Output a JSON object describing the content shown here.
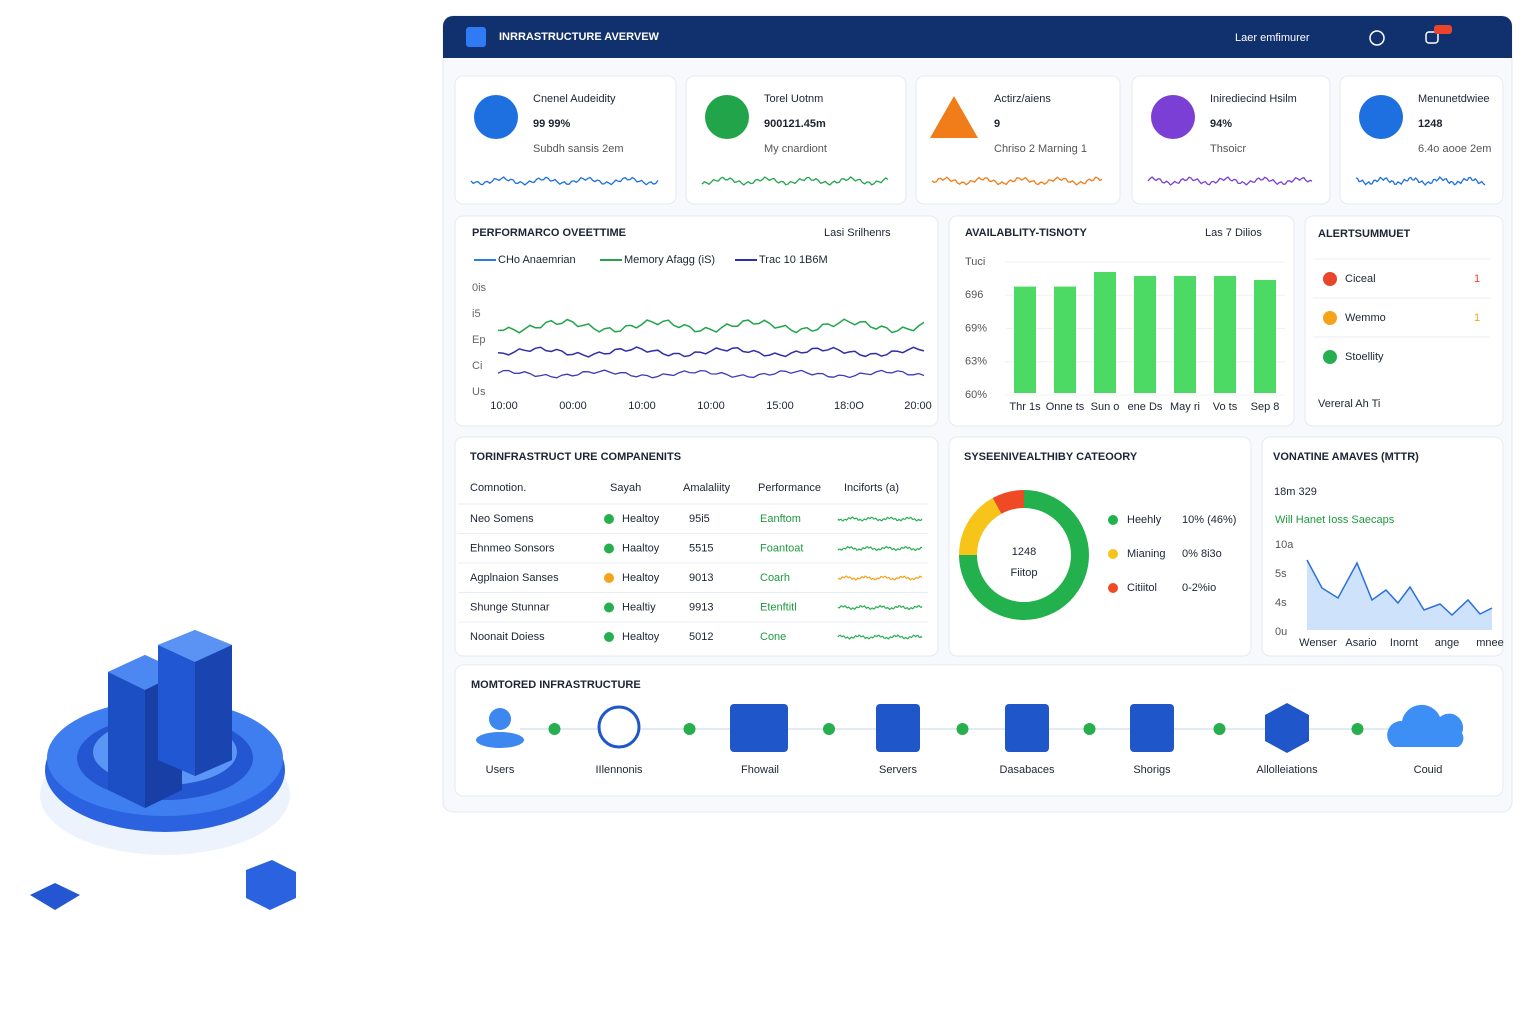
{
  "header": {
    "title": "INRRASTRUCTURE AVERVEW",
    "user": "Laer emfimurer"
  },
  "kpis": [
    {
      "label": "Cnenel Audeidity",
      "value": "99 99%",
      "sub": "Subdh sansis 2em",
      "color": "#1e6fe0"
    },
    {
      "label": "Torel Uotnm",
      "value": "900121.45m",
      "sub": "My cnardiont",
      "color": "#22a54a"
    },
    {
      "label": "Actirz/aiens",
      "value": "9",
      "sub": "Chriso 2   Marning 1",
      "color": "#f07d1a"
    },
    {
      "label": "Inirediecind Hsilm",
      "value": "94%",
      "sub": "Thsoicr",
      "color": "#7b3fd6"
    },
    {
      "label": "Menunetdwiee",
      "value": "1248",
      "sub": "6.4o aooe 2em",
      "color": "#1e6fe0"
    }
  ],
  "performance": {
    "title": "PERFORMARCO OVEETTIME",
    "dropdown": "Lasi Srilhenrs",
    "legend": [
      "CHo Anaemrian",
      "Memory Afagg (iS)",
      "Trac 10 1B6M"
    ],
    "yticks": [
      "0is",
      "i5",
      "Ep",
      "Ci",
      "Us"
    ],
    "xticks": [
      "10:00",
      "00:00",
      "10:00",
      "10:00",
      "15:00",
      "18:0O",
      "20:00"
    ]
  },
  "chart_data": {
    "type": "bar",
    "title": "AVAILABLITY-TISNOTY",
    "dropdown": "Las 7 Dilios",
    "categories": [
      "Thr 1s",
      "Onne ts",
      "Sun o",
      "ene Ds",
      "May ri",
      "Vo ts",
      "Sep 8"
    ],
    "values": [
      80,
      80,
      91,
      88,
      88,
      88,
      85
    ],
    "color": "#4cd964",
    "ylim": [
      0,
      100
    ],
    "ytick_labels": [
      "Tuci",
      "696",
      "69%",
      "63%",
      "60%"
    ]
  },
  "alerts": {
    "title": "ALERTSUMMUET",
    "items": [
      {
        "label": "Ciceal",
        "count": "1",
        "color": "#e8452c"
      },
      {
        "label": "Wemmo",
        "count": "1",
        "color": "#f5a31a"
      },
      {
        "label": "Stoellity",
        "color": "#27ae4f"
      }
    ],
    "footer": "Vereral  Ah Ti"
  },
  "table": {
    "title": "TORINFRASTRUCT URE COMPANENITS",
    "headers": [
      "Comnotion.",
      "Sayah",
      "Amalaliity",
      "Performance",
      "Inciforts (a)"
    ],
    "rows": [
      [
        "Neo Somens",
        "Healtoy",
        "95i5",
        "Eanftom"
      ],
      [
        "Ehnmeo Sonsors",
        "Haaltoy",
        "5515",
        "Foantoat"
      ],
      [
        "Agplnaion Sanses",
        "Healtoy",
        "9013",
        "Coarh"
      ],
      [
        "Shunge Stunnar",
        "Healtiy",
        "9913",
        "Etenftitl"
      ],
      [
        "Noonait Doiess",
        "Healtoy",
        "5012",
        "Cone"
      ]
    ],
    "status_colors": [
      "#27ae4f",
      "#27ae4f",
      "#f5a31a",
      "#27ae4f",
      "#27ae4f"
    ]
  },
  "health": {
    "title": "SYSEENIVEALTHIBY CATEOORY",
    "center": "1248",
    "center_sub": "Fiitop",
    "segments": [
      {
        "name": "Heehly",
        "label": "10% (46%)",
        "value": 75,
        "color": "#22b14c"
      },
      {
        "name": "Mianing",
        "label": "0% 8i3o",
        "value": 17,
        "color": "#f7c51a"
      },
      {
        "name": "Citiitol",
        "label": "0-2%io",
        "value": 8,
        "color": "#ee4a25"
      }
    ]
  },
  "mttr": {
    "title": "VONATINE AMAVES (MTTR)",
    "value": "18m 329",
    "sub": "Will Hanet Ioss Saecaps",
    "yticks": [
      "10a",
      "5s",
      "4s",
      "0u"
    ],
    "xticks": [
      "Wenser",
      "Asario",
      "Inornt",
      "ange",
      "mnee"
    ]
  },
  "infra": {
    "title": "MOMTORED  INFRASTRUCTURE",
    "nodes": [
      "Users",
      "IIlennonis",
      "Fhowail",
      "Servers",
      "Dasabaces",
      "Shorigs",
      "Allolleiations",
      "Couid"
    ]
  }
}
